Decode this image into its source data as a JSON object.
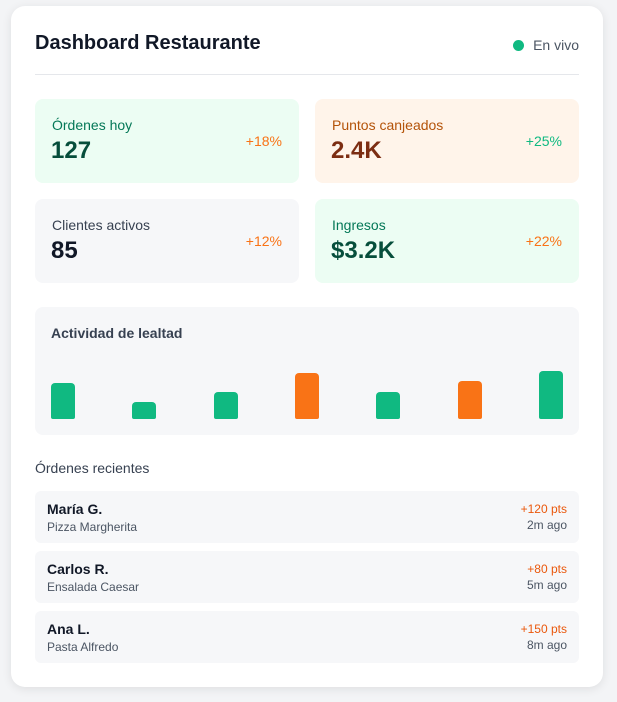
{
  "header": {
    "title": "Dashboard Restaurante",
    "status": "En vivo"
  },
  "stats": [
    {
      "label": "Órdenes hoy",
      "value": "127",
      "delta": "+18%"
    },
    {
      "label": "Puntos canjeados",
      "value": "2.4K",
      "delta": "+25%"
    },
    {
      "label": "Clientes activos",
      "value": "85",
      "delta": "+12%"
    },
    {
      "label": "Ingresos",
      "value": "$3.2K",
      "delta": "+22%"
    }
  ],
  "activity": {
    "title": "Actividad de lealtad",
    "chart_data": {
      "type": "bar",
      "values": [
        65,
        30,
        48,
        82,
        48,
        68,
        85
      ],
      "colors": [
        "#10b981",
        "#10b981",
        "#10b981",
        "#f97316",
        "#10b981",
        "#f97316",
        "#10b981"
      ],
      "ylim": [
        0,
        100
      ]
    }
  },
  "recent": {
    "title": "Órdenes recientes",
    "orders": [
      {
        "name": "María G.",
        "item": "Pizza Margherita",
        "points": "+120 pts",
        "time": "2m ago"
      },
      {
        "name": "Carlos R.",
        "item": "Ensalada Caesar",
        "points": "+80 pts",
        "time": "5m ago"
      },
      {
        "name": "Ana L.",
        "item": "Pasta Alfredo",
        "points": "+150 pts",
        "time": "8m ago"
      }
    ]
  }
}
